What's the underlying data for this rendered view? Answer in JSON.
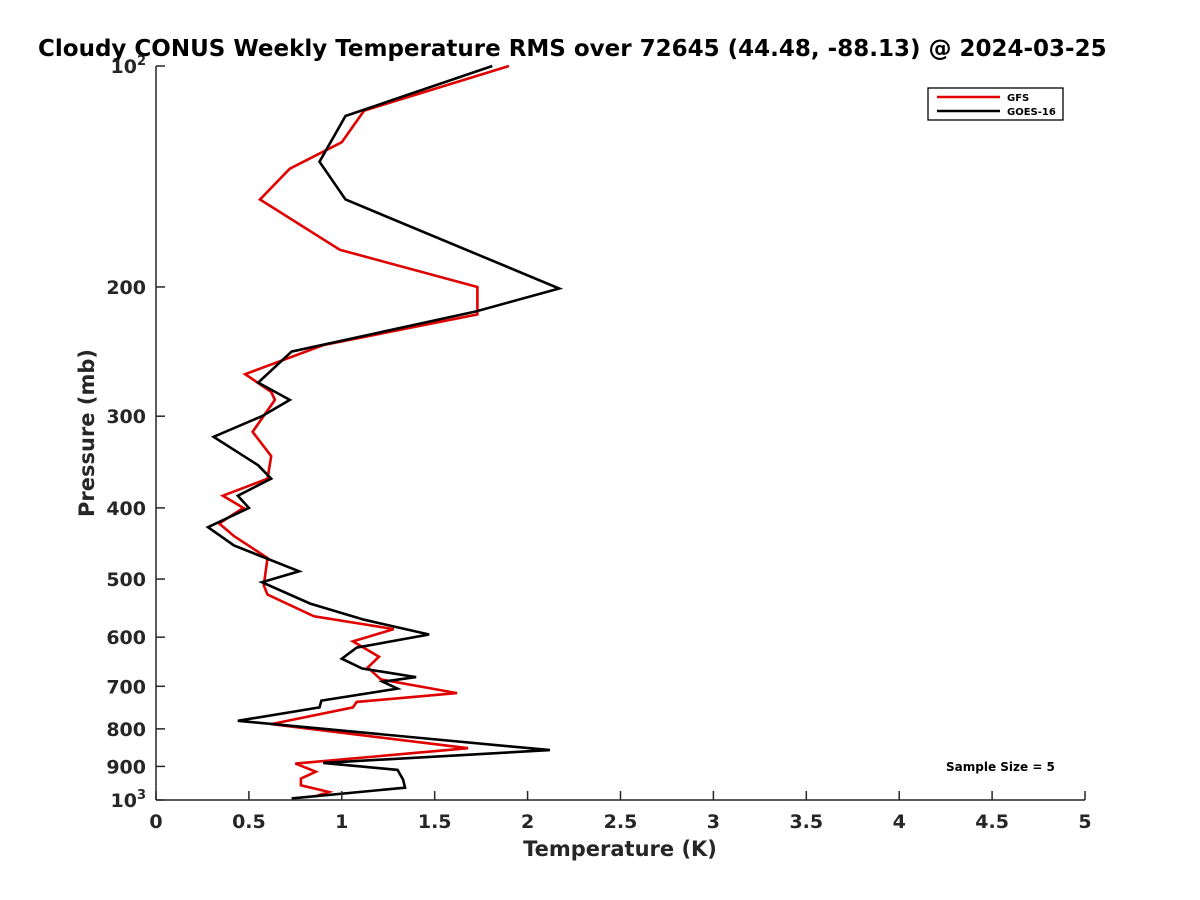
{
  "chart_data": {
    "type": "line",
    "title": "Cloudy CONUS Weekly Temperature RMS over 72645 (44.48, -88.13) @ 2024-03-25",
    "xlabel": "Temperature (K)",
    "ylabel": "Pressure (mb)",
    "xlim": [
      0,
      5
    ],
    "ylim": [
      100,
      1000
    ],
    "y_scale": "log",
    "y_direction": "reversed",
    "x_ticks": [
      0,
      0.5,
      1,
      1.5,
      2,
      2.5,
      3,
      3.5,
      4,
      4.5,
      5
    ],
    "x_tick_labels": [
      "0",
      "0.5",
      "1",
      "1.5",
      "2",
      "2.5",
      "3",
      "3.5",
      "4",
      "4.5",
      "5"
    ],
    "y_ticks": [
      100,
      200,
      300,
      400,
      500,
      600,
      700,
      800,
      900,
      1000
    ],
    "y_tick_labels": [
      {
        "base": "10",
        "sup": "2"
      },
      {
        "base": "200",
        "sup": ""
      },
      {
        "base": "300",
        "sup": ""
      },
      {
        "base": "400",
        "sup": ""
      },
      {
        "base": "500",
        "sup": ""
      },
      {
        "base": "600",
        "sup": ""
      },
      {
        "base": "700",
        "sup": ""
      },
      {
        "base": "800",
        "sup": ""
      },
      {
        "base": "900",
        "sup": ""
      },
      {
        "base": "10",
        "sup": "3"
      }
    ],
    "grid": false,
    "legend_position": "top-right",
    "annotation": "Sample Size = 5",
    "series": [
      {
        "name": "GFS",
        "color": "#e00000",
        "points": [
          [
            1.9,
            100
          ],
          [
            1.12,
            115
          ],
          [
            1.0,
            127
          ],
          [
            0.72,
            138
          ],
          [
            0.56,
            152
          ],
          [
            0.99,
            178
          ],
          [
            1.73,
            200
          ],
          [
            1.73,
            218
          ],
          [
            0.9,
            240
          ],
          [
            0.48,
            263
          ],
          [
            0.62,
            278
          ],
          [
            0.64,
            285
          ],
          [
            0.52,
            315
          ],
          [
            0.62,
            340
          ],
          [
            0.6,
            365
          ],
          [
            0.36,
            385
          ],
          [
            0.47,
            400
          ],
          [
            0.34,
            420
          ],
          [
            0.42,
            437
          ],
          [
            0.6,
            468
          ],
          [
            0.58,
            510
          ],
          [
            0.6,
            525
          ],
          [
            0.85,
            562
          ],
          [
            1.28,
            585
          ],
          [
            1.06,
            608
          ],
          [
            1.2,
            638
          ],
          [
            1.14,
            660
          ],
          [
            1.21,
            685
          ],
          [
            1.62,
            715
          ],
          [
            1.08,
            735
          ],
          [
            1.06,
            748
          ],
          [
            0.62,
            788
          ],
          [
            1.68,
            850
          ],
          [
            0.75,
            892
          ],
          [
            0.86,
            915
          ],
          [
            0.78,
            935
          ],
          [
            0.78,
            955
          ],
          [
            0.93,
            975
          ],
          [
            0.86,
            988
          ]
        ]
      },
      {
        "name": "GOES-16",
        "color": "#000000",
        "points": [
          [
            1.81,
            100
          ],
          [
            1.02,
            117
          ],
          [
            0.88,
            135
          ],
          [
            1.02,
            152
          ],
          [
            2.17,
            201
          ],
          [
            1.72,
            216
          ],
          [
            0.73,
            245
          ],
          [
            0.55,
            270
          ],
          [
            0.72,
            285
          ],
          [
            0.57,
            300
          ],
          [
            0.31,
            320
          ],
          [
            0.55,
            350
          ],
          [
            0.62,
            365
          ],
          [
            0.44,
            385
          ],
          [
            0.5,
            400
          ],
          [
            0.28,
            425
          ],
          [
            0.42,
            450
          ],
          [
            0.77,
            488
          ],
          [
            0.57,
            505
          ],
          [
            0.83,
            540
          ],
          [
            1.12,
            568
          ],
          [
            1.47,
            595
          ],
          [
            1.08,
            620
          ],
          [
            1.0,
            642
          ],
          [
            1.11,
            662
          ],
          [
            1.4,
            680
          ],
          [
            1.22,
            690
          ],
          [
            1.3,
            705
          ],
          [
            0.89,
            732
          ],
          [
            0.88,
            748
          ],
          [
            0.44,
            780
          ],
          [
            2.12,
            855
          ],
          [
            0.9,
            890
          ],
          [
            1.3,
            910
          ],
          [
            1.33,
            938
          ],
          [
            1.34,
            962
          ],
          [
            0.73,
            995
          ]
        ]
      }
    ]
  }
}
